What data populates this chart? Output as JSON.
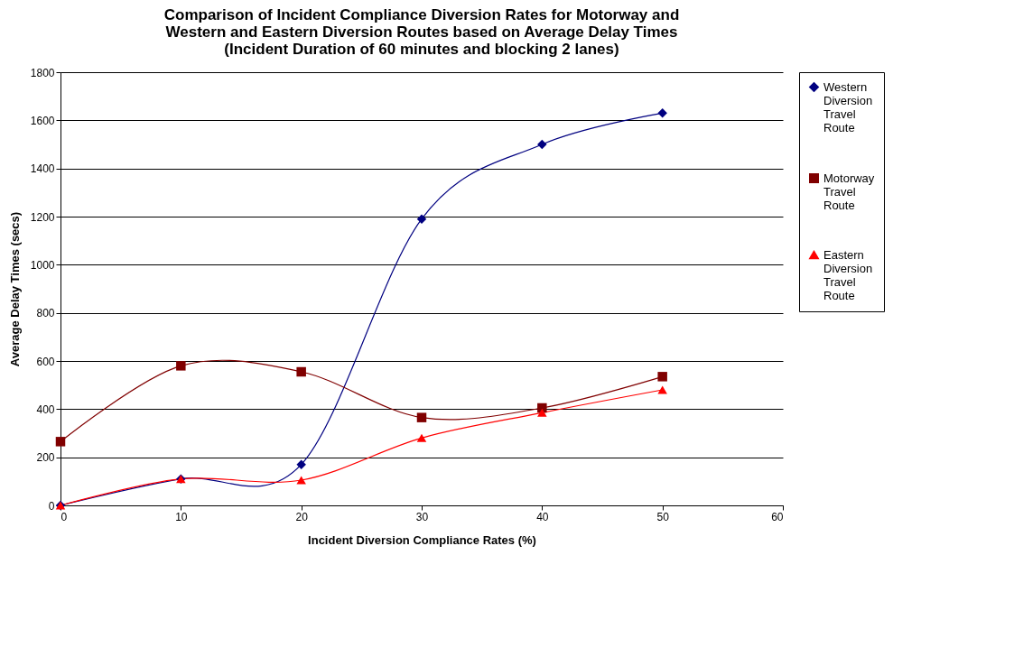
{
  "chart_data": {
    "type": "line",
    "title": "Comparison of Incident Compliance Diversion Rates for Motorway and Western and Eastern Diversion Routes based on Average Delay Times (Incident Duration of 60 minutes and blocking 2 lanes)",
    "xlabel": "Incident Diversion Compliance Rates (%)",
    "ylabel": "Average Delay Times (secs)",
    "x": [
      0,
      10,
      20,
      30,
      40,
      50
    ],
    "xlim": [
      0,
      60
    ],
    "xticks": [
      0,
      10,
      20,
      30,
      40,
      50,
      60
    ],
    "ylim": [
      0,
      1800
    ],
    "yticks": [
      0,
      200,
      400,
      600,
      800,
      1000,
      1200,
      1400,
      1600,
      1800
    ],
    "grid": "y",
    "legend": "right",
    "series": [
      {
        "name": "Western Diversion Travel Route",
        "color": "#000080",
        "marker": "diamond",
        "values": [
          0,
          110,
          170,
          1190,
          1500,
          1630
        ]
      },
      {
        "name": "Motorway Travel Route",
        "color": "#800000",
        "marker": "square",
        "values": [
          265,
          580,
          555,
          365,
          405,
          535
        ]
      },
      {
        "name": "Eastern Diversion Travel Route",
        "color": "#ff0000",
        "marker": "triangle",
        "values": [
          0,
          110,
          105,
          280,
          385,
          480
        ]
      }
    ]
  }
}
